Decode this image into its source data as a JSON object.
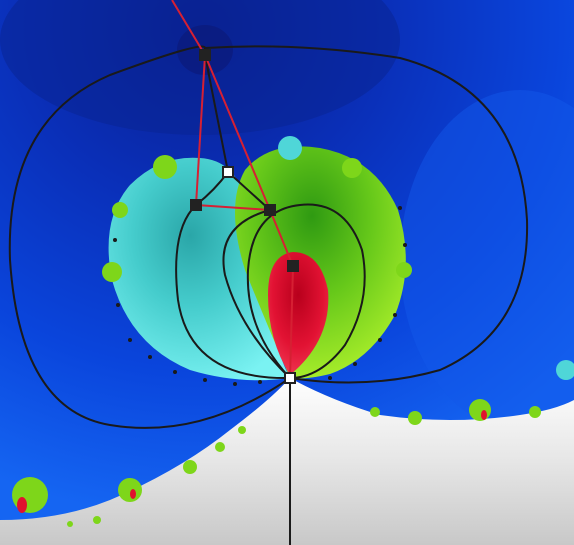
{
  "colors": {
    "background_far": "#0a2aa8",
    "background_mid": "#0a3fd6",
    "background_near": "#1560f0",
    "complement_white": "#e9e9e9",
    "cyan_component": "#4fd6d8",
    "green_component": "#7ed61a",
    "red_component": "#e0122e",
    "boundary_dots": "#1a1a1a",
    "curve_black": "#1a1a1a",
    "curve_red": "#d62033",
    "node_filled": "#222222",
    "node_hollow": "#ffffff"
  },
  "icons": {
    "filled_node": "filled-square-node-icon",
    "hollow_node": "hollow-square-node-icon"
  }
}
